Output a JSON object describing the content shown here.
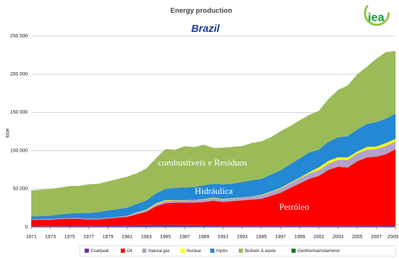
{
  "chart_data": {
    "type": "stacked_area",
    "title": "Energy production",
    "subtitle": "Brazil",
    "logo": "iea",
    "y_label": "ktoe",
    "x": [
      1971,
      1972,
      1973,
      1974,
      1975,
      1976,
      1977,
      1978,
      1979,
      1980,
      1981,
      1982,
      1983,
      1984,
      1985,
      1986,
      1987,
      1988,
      1989,
      1990,
      1991,
      1992,
      1993,
      1994,
      1995,
      1996,
      1997,
      1998,
      1999,
      2000,
      2001,
      2002,
      2003,
      2004,
      2005,
      2006,
      2007,
      2008,
      2009
    ],
    "xlim": [
      1971,
      2009
    ],
    "xticks": [
      1971,
      1973,
      1975,
      1977,
      1979,
      1981,
      1983,
      1985,
      1987,
      1989,
      1991,
      1993,
      1995,
      1997,
      1999,
      2001,
      2003,
      2005,
      2007,
      2009
    ],
    "ylim": [
      0,
      250000
    ],
    "yticks": [
      0,
      {
        "value": 50000,
        "label": "50 000"
      },
      {
        "value": 100000,
        "label": "100 000"
      },
      {
        "value": 150000,
        "label": "150 000"
      },
      {
        "value": 200000,
        "label": "200 000"
      },
      {
        "value": 250000,
        "label": "250 000"
      }
    ],
    "grid": true,
    "series": [
      {
        "name": "Coal/peat",
        "color": "#7030a0",
        "values": [
          1500,
          1500,
          1600,
          1700,
          1800,
          2000,
          2000,
          2200,
          2300,
          2500,
          2500,
          2800,
          3000,
          3200,
          3300,
          3000,
          3000,
          3000,
          2800,
          2500,
          2000,
          2000,
          2000,
          2000,
          2000,
          2000,
          2000,
          2200,
          2200,
          2200,
          2000,
          2000,
          2000,
          2000,
          2200,
          2200,
          2200,
          2300,
          2000
        ]
      },
      {
        "name": "Oil",
        "color": "#ff0000",
        "values": [
          8000,
          8000,
          8000,
          9000,
          9000,
          9000,
          8000,
          8000,
          9000,
          10000,
          11000,
          14000,
          17000,
          24000,
          28000,
          29000,
          29000,
          29000,
          30000,
          32000,
          31000,
          32000,
          33000,
          34000,
          35000,
          39000,
          43000,
          49000,
          55000,
          61000,
          65000,
          73000,
          77000,
          76000,
          84000,
          89000,
          90000,
          93000,
          100000
        ]
      },
      {
        "name": "Natural gas",
        "color": "#b3a2c7",
        "values": [
          1000,
          1000,
          1000,
          1000,
          1000,
          1000,
          1000,
          1000,
          1000,
          1000,
          1500,
          2000,
          2000,
          2500,
          3000,
          3000,
          3000,
          3500,
          3500,
          3500,
          3500,
          3500,
          4000,
          4000,
          4500,
          5000,
          5500,
          6000,
          6500,
          7000,
          7500,
          8000,
          9000,
          10000,
          10000,
          10000,
          10000,
          11000,
          10000
        ]
      },
      {
        "name": "Nuclear",
        "color": "#ffff00",
        "values": [
          0,
          0,
          0,
          0,
          0,
          0,
          0,
          0,
          0,
          0,
          0,
          500,
          800,
          1200,
          900,
          300,
          300,
          200,
          500,
          600,
          400,
          500,
          100,
          100,
          700,
          600,
          800,
          900,
          1000,
          1600,
          3700,
          3600,
          3500,
          3100,
          2600,
          3600,
          3200,
          3600,
          3400
        ]
      },
      {
        "name": "Hydro",
        "color": "#2488d4",
        "values": [
          3500,
          4000,
          4500,
          5000,
          6000,
          6500,
          7500,
          8500,
          9500,
          10000,
          10500,
          11000,
          12000,
          13000,
          15000,
          16000,
          16500,
          17000,
          18000,
          18000,
          19000,
          19000,
          20000,
          21000,
          21000,
          22000,
          23000,
          24000,
          25000,
          26000,
          23000,
          25000,
          26000,
          28000,
          29000,
          30000,
          32000,
          32000,
          33000
        ]
      },
      {
        "name": "Biofuels & waste",
        "color": "#9bbb59",
        "values": [
          34000,
          34500,
          35000,
          35000,
          36000,
          35500,
          37500,
          37000,
          38000,
          39500,
          40500,
          40000,
          42000,
          46000,
          52000,
          50000,
          54000,
          52000,
          53000,
          47000,
          48000,
          48000,
          47000,
          49000,
          49000,
          49000,
          51000,
          50000,
          50000,
          49000,
          51000,
          56000,
          62000,
          66000,
          72000,
          75000,
          83000,
          87000,
          82000
        ]
      },
      {
        "name": "Geothermal/solar/wind",
        "color": "#1a7a2a",
        "values": [
          0,
          0,
          0,
          0,
          0,
          0,
          0,
          0,
          0,
          0,
          0,
          0,
          0,
          0,
          0,
          0,
          0,
          0,
          0,
          0,
          0,
          0,
          0,
          0,
          0,
          0,
          0,
          0,
          0,
          0,
          0,
          0,
          0,
          0,
          0,
          0,
          0,
          0,
          0
        ]
      }
    ],
    "annotations": [
      "combustíveis e Resíduos",
      "Hidráulica",
      "Petróleo"
    ]
  }
}
